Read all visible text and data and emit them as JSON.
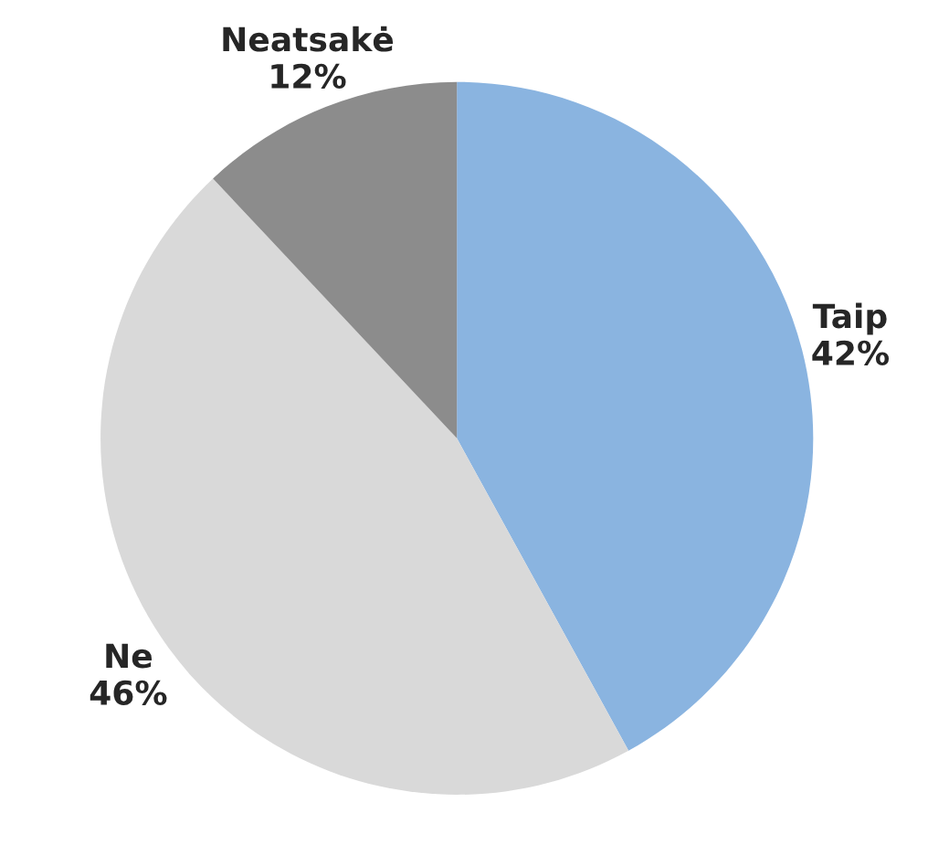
{
  "chart_data": {
    "type": "pie",
    "categories": [
      "Taip",
      "Ne",
      "Neatsakė"
    ],
    "values": [
      42,
      46,
      12
    ],
    "value_labels": [
      "42%",
      "46%",
      "12%"
    ],
    "colors": [
      "#8ab4e0",
      "#d9d9d9",
      "#8c8c8c"
    ]
  }
}
